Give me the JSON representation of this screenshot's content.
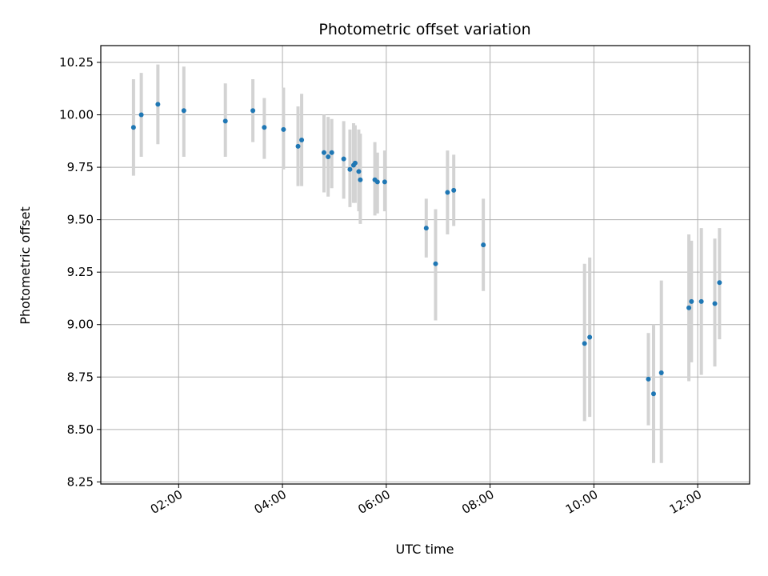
{
  "chart_data": {
    "type": "scatter",
    "title": "Photometric offset variation",
    "xlabel": "UTC time",
    "ylabel": "Photometric offset",
    "grid": true,
    "x_unit": "hours",
    "xlim": [
      0.5,
      13.0
    ],
    "ylim": [
      8.24,
      10.33
    ],
    "x_ticks": [
      {
        "value": 2,
        "label": "02:00"
      },
      {
        "value": 4,
        "label": "04:00"
      },
      {
        "value": 6,
        "label": "06:00"
      },
      {
        "value": 8,
        "label": "08:00"
      },
      {
        "value": 10,
        "label": "10:00"
      },
      {
        "value": 12,
        "label": "12:00"
      }
    ],
    "y_ticks": [
      {
        "value": 8.25,
        "label": "8.25"
      },
      {
        "value": 8.5,
        "label": "8.50"
      },
      {
        "value": 8.75,
        "label": "8.75"
      },
      {
        "value": 9.0,
        "label": "9.00"
      },
      {
        "value": 9.25,
        "label": "9.25"
      },
      {
        "value": 9.5,
        "label": "9.50"
      },
      {
        "value": 9.75,
        "label": "9.75"
      },
      {
        "value": 10.0,
        "label": "10.00"
      },
      {
        "value": 10.25,
        "label": "10.25"
      }
    ],
    "colors": {
      "point": "#1f77b4",
      "errorbar": "#d3d3d3",
      "grid": "#b0b0b0",
      "axis": "#000000"
    },
    "points": [
      {
        "x": 1.13,
        "y": 9.94,
        "lo": 9.71,
        "hi": 10.17
      },
      {
        "x": 1.28,
        "y": 10.0,
        "lo": 9.8,
        "hi": 10.2
      },
      {
        "x": 1.6,
        "y": 10.05,
        "lo": 9.86,
        "hi": 10.24
      },
      {
        "x": 2.1,
        "y": 10.02,
        "lo": 9.8,
        "hi": 10.23
      },
      {
        "x": 2.9,
        "y": 9.97,
        "lo": 9.8,
        "hi": 10.15
      },
      {
        "x": 3.43,
        "y": 10.02,
        "lo": 9.87,
        "hi": 10.17
      },
      {
        "x": 3.65,
        "y": 9.94,
        "lo": 9.79,
        "hi": 10.08
      },
      {
        "x": 4.02,
        "y": 9.93,
        "lo": 9.74,
        "hi": 10.13
      },
      {
        "x": 4.3,
        "y": 9.85,
        "lo": 9.66,
        "hi": 10.04
      },
      {
        "x": 4.37,
        "y": 9.88,
        "lo": 9.66,
        "hi": 10.1
      },
      {
        "x": 4.8,
        "y": 9.82,
        "lo": 9.63,
        "hi": 10.0
      },
      {
        "x": 4.88,
        "y": 9.8,
        "lo": 9.61,
        "hi": 9.99
      },
      {
        "x": 4.95,
        "y": 9.82,
        "lo": 9.65,
        "hi": 9.98
      },
      {
        "x": 5.18,
        "y": 9.79,
        "lo": 9.6,
        "hi": 9.97
      },
      {
        "x": 5.3,
        "y": 9.74,
        "lo": 9.56,
        "hi": 9.93
      },
      {
        "x": 5.37,
        "y": 9.76,
        "lo": 9.58,
        "hi": 9.96
      },
      {
        "x": 5.4,
        "y": 9.77,
        "lo": 9.58,
        "hi": 9.95
      },
      {
        "x": 5.47,
        "y": 9.73,
        "lo": 9.54,
        "hi": 9.93
      },
      {
        "x": 5.5,
        "y": 9.69,
        "lo": 9.48,
        "hi": 9.91
      },
      {
        "x": 5.78,
        "y": 9.69,
        "lo": 9.52,
        "hi": 9.87
      },
      {
        "x": 5.83,
        "y": 9.68,
        "lo": 9.53,
        "hi": 9.82
      },
      {
        "x": 5.97,
        "y": 9.68,
        "lo": 9.54,
        "hi": 9.83
      },
      {
        "x": 6.77,
        "y": 9.46,
        "lo": 9.32,
        "hi": 9.6
      },
      {
        "x": 6.95,
        "y": 9.29,
        "lo": 9.02,
        "hi": 9.55
      },
      {
        "x": 7.18,
        "y": 9.63,
        "lo": 9.43,
        "hi": 9.83
      },
      {
        "x": 7.3,
        "y": 9.64,
        "lo": 9.47,
        "hi": 9.81
      },
      {
        "x": 7.87,
        "y": 9.38,
        "lo": 9.16,
        "hi": 9.6
      },
      {
        "x": 9.82,
        "y": 8.91,
        "lo": 8.54,
        "hi": 9.29
      },
      {
        "x": 9.92,
        "y": 8.94,
        "lo": 8.56,
        "hi": 9.32
      },
      {
        "x": 11.05,
        "y": 8.74,
        "lo": 8.52,
        "hi": 8.96
      },
      {
        "x": 11.15,
        "y": 8.67,
        "lo": 8.34,
        "hi": 9.0
      },
      {
        "x": 11.3,
        "y": 8.77,
        "lo": 8.34,
        "hi": 9.21
      },
      {
        "x": 11.83,
        "y": 9.08,
        "lo": 8.73,
        "hi": 9.43
      },
      {
        "x": 11.88,
        "y": 9.11,
        "lo": 8.82,
        "hi": 9.4
      },
      {
        "x": 12.07,
        "y": 9.11,
        "lo": 8.76,
        "hi": 9.46
      },
      {
        "x": 12.33,
        "y": 9.1,
        "lo": 8.8,
        "hi": 9.41
      },
      {
        "x": 12.42,
        "y": 9.2,
        "lo": 8.93,
        "hi": 9.46
      }
    ]
  }
}
